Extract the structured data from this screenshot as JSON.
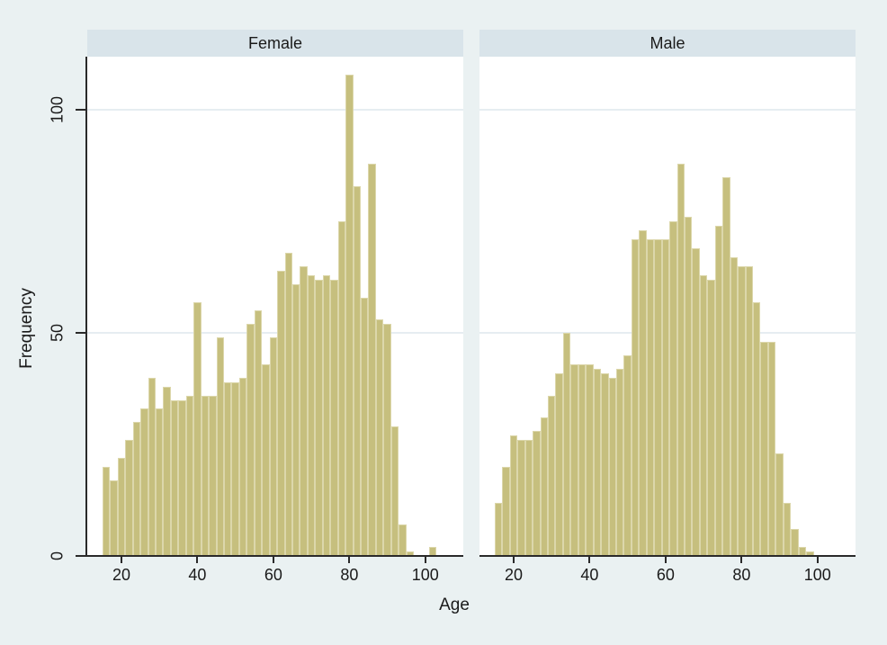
{
  "figure": {
    "kind": "faceted histogram (Stata style)",
    "xlabel": "Age",
    "ylabel": "Frequency",
    "colors": {
      "background": "#eaf1f2",
      "facet_title_band": "#d9e4ea",
      "plot_background": "#ffffff",
      "gridline": "#e6edf1",
      "bar_fill": "#c6bf7e",
      "bar_outline": "#dcd7ab",
      "axis": "#2a2a2a",
      "text": "#1a1a1a"
    }
  },
  "chart_data": {
    "type": "bar",
    "subtype": "histogram",
    "xlabel": "Age",
    "ylabel": "Frequency",
    "legend": "none",
    "grid": "horizontal gridlines at y=50 and y=100",
    "x_domain": [
      11,
      110
    ],
    "y_domain": [
      0,
      112
    ],
    "x_ticks": [
      20,
      40,
      60,
      80,
      100
    ],
    "y_ticks": [
      0,
      50,
      100
    ],
    "grid_y_at": [
      50,
      100
    ],
    "bin_start": 15,
    "bin_width": 2,
    "panels": [
      {
        "title": "Female",
        "values": [
          20,
          17,
          22,
          26,
          30,
          33,
          40,
          33,
          38,
          35,
          35,
          36,
          57,
          36,
          36,
          49,
          39,
          39,
          40,
          52,
          55,
          43,
          49,
          64,
          68,
          61,
          65,
          63,
          62,
          63,
          62,
          75,
          108,
          83,
          58,
          88,
          53,
          52,
          29,
          7,
          1,
          0,
          0,
          2,
          0,
          0
        ]
      },
      {
        "title": "Male",
        "values": [
          12,
          20,
          27,
          26,
          26,
          28,
          31,
          36,
          41,
          50,
          43,
          43,
          43,
          42,
          41,
          40,
          42,
          45,
          71,
          73,
          71,
          71,
          71,
          75,
          88,
          76,
          69,
          63,
          62,
          74,
          85,
          67,
          65,
          65,
          57,
          48,
          48,
          23,
          12,
          6,
          2,
          1,
          0,
          0,
          0,
          0
        ]
      }
    ]
  }
}
